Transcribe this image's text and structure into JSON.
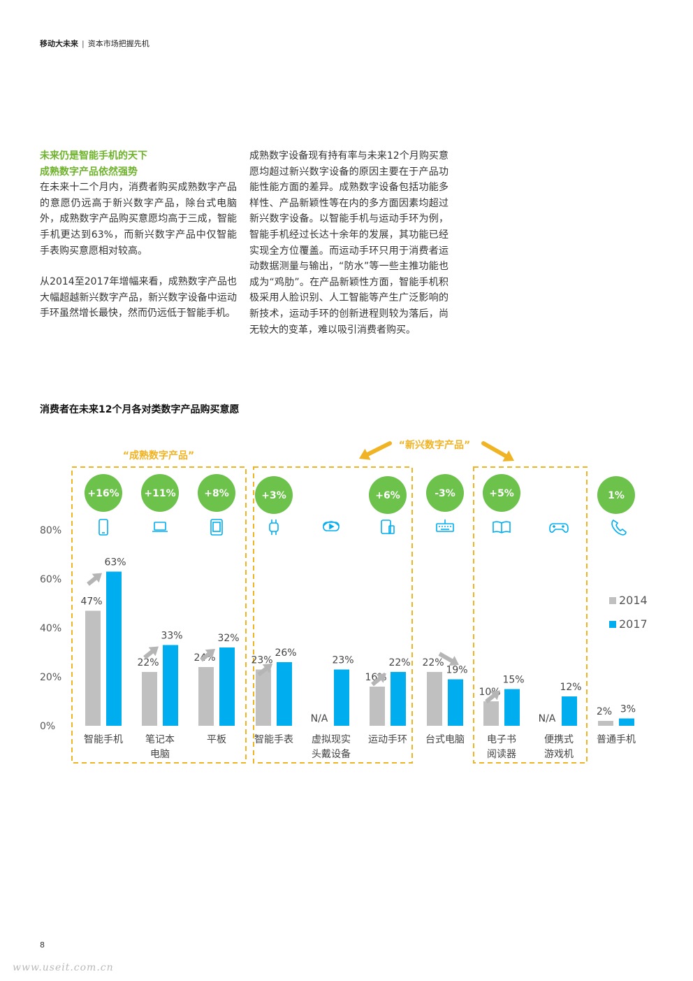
{
  "header": {
    "title": "移动大未来",
    "subtitle": "资本市场把握先机"
  },
  "left_column": {
    "heading_line1": "未来仍是智能手机的天下",
    "heading_line2": "成熟数字产品依然强势",
    "para1": "在未来十二个月内，消费者购买成熟数字产品的意愿仍远高于新兴数字产品，除台式电脑外，成熟数字产品购买意愿均高于三成，智能手机更达到63%，而新兴数字产品中仅智能手表购买意愿相对较高。",
    "para2": "从2014至2017年增幅来看，成熟数字产品也大幅超越新兴数字产品，新兴数字设备中运动手环虽然增长最快，然而仍远低于智能手机。"
  },
  "right_column": {
    "para1": "成熟数字设备现有持有率与未来12个月购买意愿均超过新兴数字设备的原因主要在于产品功能性能方面的差异。成熟数字设备包括功能多样性、产品新颖性等在内的多方面因素均超过新兴数字设备。以智能手机与运动手环为例，智能手机经过长达十余年的发展，其功能已经实现全方位覆盖。而运动手环只用于消费者运动数据测量与输出，“防水”等一些主推功能也成为“鸡肋”。在产品新颖性方面，智能手机积极采用人脸识别、人工智能等产生广泛影响的新技术，运动手环的创新进程则较为落后，尚无较大的变革，难以吸引消费者购买。"
  },
  "chart_data": {
    "type": "bar",
    "title": "消费者在未来12个月各对类数字产品购买意愿",
    "categories": [
      [
        "智能手机"
      ],
      [
        "笔记本",
        "电脑"
      ],
      [
        "平板"
      ],
      [
        "智能手表"
      ],
      [
        "虚拟现实",
        "头戴设备"
      ],
      [
        "运动手环"
      ],
      [
        "台式电脑"
      ],
      [
        "电子书",
        "阅读器"
      ],
      [
        "便携式",
        "游戏机"
      ],
      [
        "普通手机"
      ]
    ],
    "series": [
      {
        "name": "2014",
        "color": "#c0c0c0",
        "values": [
          47,
          22,
          24,
          23,
          null,
          16,
          22,
          10,
          null,
          2
        ]
      },
      {
        "name": "2017",
        "color": "#00aeef",
        "values": [
          63,
          33,
          32,
          26,
          23,
          22,
          19,
          15,
          12,
          3
        ]
      }
    ],
    "value_labels_2014": [
      "47%",
      "22%",
      "24%",
      "23%",
      "N/A",
      "16%",
      "22%",
      "10%",
      "N/A",
      "2%"
    ],
    "value_labels_2017": [
      "63%",
      "33%",
      "32%",
      "26%",
      "23%",
      "22%",
      "19%",
      "15%",
      "12%",
      "3%"
    ],
    "change_badges": [
      "+16%",
      "+11%",
      "+8%",
      "+3%",
      "",
      "+6%",
      "-3%",
      "+5%",
      "",
      "1%"
    ],
    "trend": [
      "up",
      "up",
      "up",
      "up",
      "",
      "up",
      "down",
      "up",
      "",
      ""
    ],
    "icons": [
      "smartphone-icon",
      "laptop-icon",
      "tablet-icon",
      "smartwatch-icon",
      "vr-headset-icon",
      "fitness-band-icon",
      "keyboard-icon",
      "ebook-icon",
      "gamepad-icon",
      "phone-icon"
    ],
    "ylim": [
      0,
      80
    ],
    "yticks": [
      "0%",
      "20%",
      "40%",
      "60%",
      "80%"
    ],
    "legend_position": "right",
    "groups": [
      {
        "label": "“成熟数字产品”",
        "start": 0,
        "end": 2
      },
      {
        "label": "“新兴数字产品”",
        "start": 3,
        "end": 5
      },
      {
        "label": "",
        "start": 7,
        "end": 8
      }
    ],
    "colors": {
      "badge": "#6cc24a",
      "bar2014": "#c0c0c0",
      "bar2017": "#00aeef",
      "group_border": "#f0b323",
      "trend_arrow": "#b5b5b5",
      "icon": "#00aeef"
    }
  },
  "footer": {
    "page_number": "8",
    "watermark": "www.useit.com.cn"
  }
}
